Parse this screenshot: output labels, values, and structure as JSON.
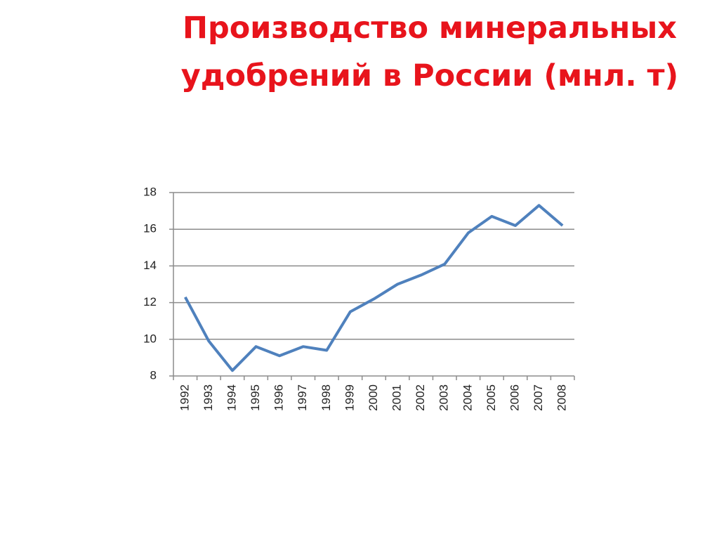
{
  "chart_data": {
    "type": "line",
    "title": "Производство минеральных удобрений в России (мнл. т)",
    "categories": [
      "1992",
      "1993",
      "1994",
      "1995",
      "1996",
      "1997",
      "1998",
      "1999",
      "2000",
      "2001",
      "2002",
      "2003",
      "2004",
      "2005",
      "2006",
      "2007",
      "2008"
    ],
    "values": [
      12.3,
      9.9,
      8.3,
      9.6,
      9.1,
      9.6,
      9.4,
      11.5,
      12.2,
      13.0,
      13.5,
      14.1,
      15.8,
      16.7,
      16.2,
      17.3,
      16.2
    ],
    "color": "#4f81bd",
    "ylim": [
      8,
      18
    ],
    "yticks": [
      8,
      10,
      12,
      14,
      16,
      18
    ],
    "grid": true
  }
}
